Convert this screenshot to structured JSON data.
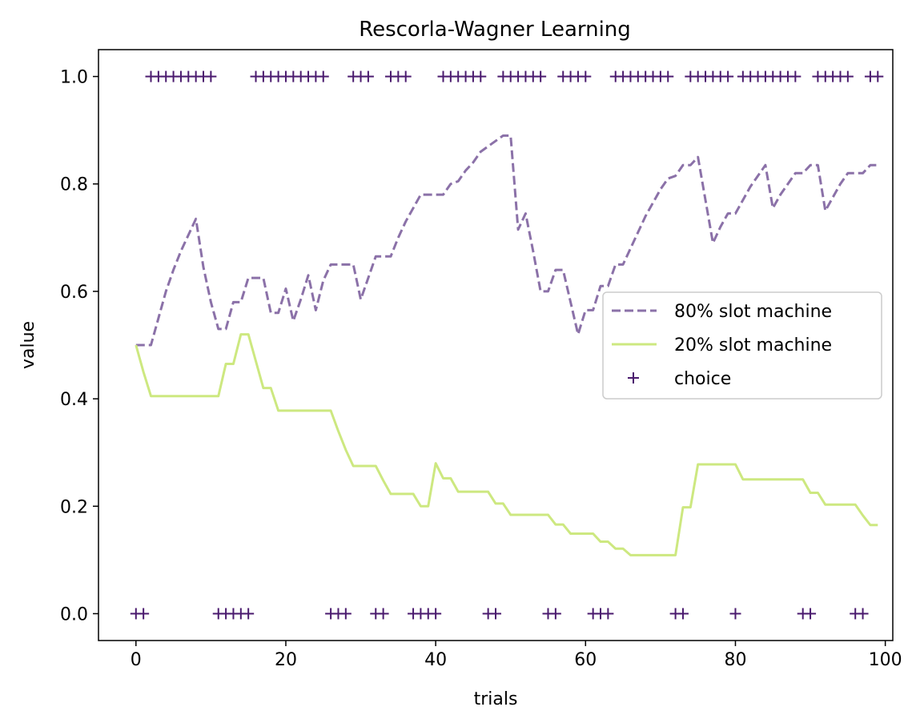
{
  "chart_data": {
    "type": "line",
    "title": "Rescorla-Wagner Learning",
    "xlabel": "trials",
    "ylabel": "value",
    "xlim": [
      -5,
      101
    ],
    "ylim": [
      -0.05,
      1.05
    ],
    "xticks": [
      0,
      20,
      40,
      60,
      80,
      100
    ],
    "yticks": [
      0.0,
      0.2,
      0.4,
      0.6,
      0.8,
      1.0
    ],
    "xtick_labels": [
      "0",
      "20",
      "40",
      "60",
      "80",
      "100"
    ],
    "ytick_labels": [
      "0.0",
      "0.2",
      "0.4",
      "0.6",
      "0.8",
      "1.0"
    ],
    "grid": false,
    "legend_placement": "center-right",
    "series": [
      {
        "name": "80% slot machine",
        "style": "dashed",
        "color": "#8b71a8",
        "x": [
          0,
          1,
          2,
          3,
          4,
          5,
          6,
          7,
          8,
          9,
          10,
          11,
          12,
          13,
          14,
          15,
          16,
          17,
          18,
          19,
          20,
          21,
          22,
          23,
          24,
          25,
          26,
          27,
          28,
          29,
          30,
          31,
          32,
          33,
          34,
          35,
          36,
          37,
          38,
          39,
          40,
          41,
          42,
          43,
          44,
          45,
          46,
          47,
          48,
          49,
          50,
          51,
          52,
          53,
          54,
          55,
          56,
          57,
          58,
          59,
          60,
          61,
          62,
          63,
          64,
          65,
          66,
          67,
          68,
          69,
          70,
          71,
          72,
          73,
          74,
          75,
          76,
          77,
          78,
          79,
          80,
          81,
          82,
          83,
          84,
          85,
          86,
          87,
          88,
          89,
          90,
          91,
          92,
          93,
          94,
          95,
          96,
          97,
          98,
          99
        ],
        "values": [
          0.5,
          0.5,
          0.5,
          0.55,
          0.6,
          0.64,
          0.675,
          0.705,
          0.735,
          0.645,
          0.58,
          0.53,
          0.53,
          0.58,
          0.58,
          0.625,
          0.625,
          0.625,
          0.56,
          0.56,
          0.605,
          0.545,
          0.585,
          0.63,
          0.565,
          0.62,
          0.65,
          0.65,
          0.65,
          0.65,
          0.585,
          0.625,
          0.665,
          0.665,
          0.665,
          0.7,
          0.73,
          0.755,
          0.78,
          0.78,
          0.78,
          0.78,
          0.8,
          0.805,
          0.825,
          0.84,
          0.86,
          0.87,
          0.88,
          0.89,
          0.89,
          0.715,
          0.745,
          0.675,
          0.6,
          0.6,
          0.64,
          0.64,
          0.58,
          0.52,
          0.565,
          0.565,
          0.61,
          0.61,
          0.65,
          0.65,
          0.68,
          0.71,
          0.74,
          0.765,
          0.79,
          0.81,
          0.815,
          0.835,
          0.835,
          0.85,
          0.77,
          0.69,
          0.72,
          0.745,
          0.745,
          0.77,
          0.795,
          0.815,
          0.835,
          0.755,
          0.78,
          0.8,
          0.82,
          0.82,
          0.835,
          0.835,
          0.75,
          0.775,
          0.8,
          0.82,
          0.82,
          0.82,
          0.835,
          0.835
        ]
      },
      {
        "name": "20% slot machine",
        "style": "solid",
        "color": "#cde880",
        "x": [
          0,
          1,
          2,
          3,
          4,
          5,
          6,
          7,
          8,
          9,
          10,
          11,
          12,
          13,
          14,
          15,
          16,
          17,
          18,
          19,
          20,
          21,
          22,
          23,
          24,
          25,
          26,
          27,
          28,
          29,
          30,
          31,
          32,
          33,
          34,
          35,
          36,
          37,
          38,
          39,
          40,
          41,
          42,
          43,
          44,
          45,
          46,
          47,
          48,
          49,
          50,
          51,
          52,
          53,
          54,
          55,
          56,
          57,
          58,
          59,
          60,
          61,
          62,
          63,
          64,
          65,
          66,
          67,
          68,
          69,
          70,
          71,
          72,
          73,
          74,
          75,
          76,
          77,
          78,
          79,
          80,
          81,
          82,
          83,
          84,
          85,
          86,
          87,
          88,
          89,
          90,
          91,
          92,
          93,
          94,
          95,
          96,
          97,
          98,
          99
        ],
        "values": [
          0.5,
          0.45,
          0.405,
          0.405,
          0.405,
          0.405,
          0.405,
          0.405,
          0.405,
          0.405,
          0.405,
          0.405,
          0.465,
          0.465,
          0.52,
          0.52,
          0.47,
          0.42,
          0.42,
          0.378,
          0.378,
          0.378,
          0.378,
          0.378,
          0.378,
          0.378,
          0.378,
          0.34,
          0.305,
          0.275,
          0.275,
          0.275,
          0.275,
          0.248,
          0.223,
          0.223,
          0.223,
          0.223,
          0.2,
          0.2,
          0.28,
          0.252,
          0.252,
          0.227,
          0.227,
          0.227,
          0.227,
          0.227,
          0.205,
          0.205,
          0.184,
          0.184,
          0.184,
          0.184,
          0.184,
          0.184,
          0.166,
          0.166,
          0.149,
          0.149,
          0.149,
          0.149,
          0.134,
          0.134,
          0.121,
          0.121,
          0.109,
          0.109,
          0.109,
          0.109,
          0.109,
          0.109,
          0.109,
          0.198,
          0.198,
          0.278,
          0.278,
          0.278,
          0.278,
          0.278,
          0.278,
          0.25,
          0.25,
          0.25,
          0.25,
          0.25,
          0.25,
          0.25,
          0.25,
          0.25,
          0.225,
          0.225,
          0.203,
          0.203,
          0.203,
          0.203,
          0.203,
          0.183,
          0.165,
          0.165
        ]
      },
      {
        "name": "choice",
        "style": "markers",
        "marker": "+",
        "color": "#4a1a6e",
        "x": [
          0,
          1,
          2,
          3,
          4,
          5,
          6,
          7,
          8,
          9,
          10,
          11,
          12,
          13,
          14,
          15,
          16,
          17,
          18,
          19,
          20,
          21,
          22,
          23,
          24,
          25,
          26,
          27,
          28,
          29,
          30,
          31,
          32,
          33,
          34,
          35,
          36,
          37,
          38,
          39,
          40,
          41,
          42,
          43,
          44,
          45,
          46,
          47,
          48,
          49,
          50,
          51,
          52,
          53,
          54,
          55,
          56,
          57,
          58,
          59,
          60,
          61,
          62,
          63,
          64,
          65,
          66,
          67,
          68,
          69,
          70,
          71,
          72,
          73,
          74,
          75,
          76,
          77,
          78,
          79,
          80,
          81,
          82,
          83,
          84,
          85,
          86,
          87,
          88,
          89,
          90,
          91,
          92,
          93,
          94,
          95,
          96,
          97,
          98,
          99
        ],
        "values": [
          0,
          0,
          1,
          1,
          1,
          1,
          1,
          1,
          1,
          1,
          1,
          0,
          0,
          0,
          0,
          0,
          1,
          1,
          1,
          1,
          1,
          1,
          1,
          1,
          1,
          1,
          0,
          0,
          0,
          1,
          1,
          1,
          0,
          0,
          1,
          1,
          1,
          0,
          0,
          0,
          0,
          1,
          1,
          1,
          1,
          1,
          1,
          0,
          0,
          1,
          1,
          1,
          1,
          1,
          1,
          0,
          0,
          1,
          1,
          1,
          1,
          0,
          0,
          0,
          1,
          1,
          1,
          1,
          1,
          1,
          1,
          1,
          0,
          0,
          1,
          1,
          1,
          1,
          1,
          1,
          0,
          1,
          1,
          1,
          1,
          1,
          1,
          1,
          1,
          0,
          0,
          1,
          1,
          1,
          1,
          1,
          0,
          0,
          1,
          1
        ]
      }
    ]
  }
}
